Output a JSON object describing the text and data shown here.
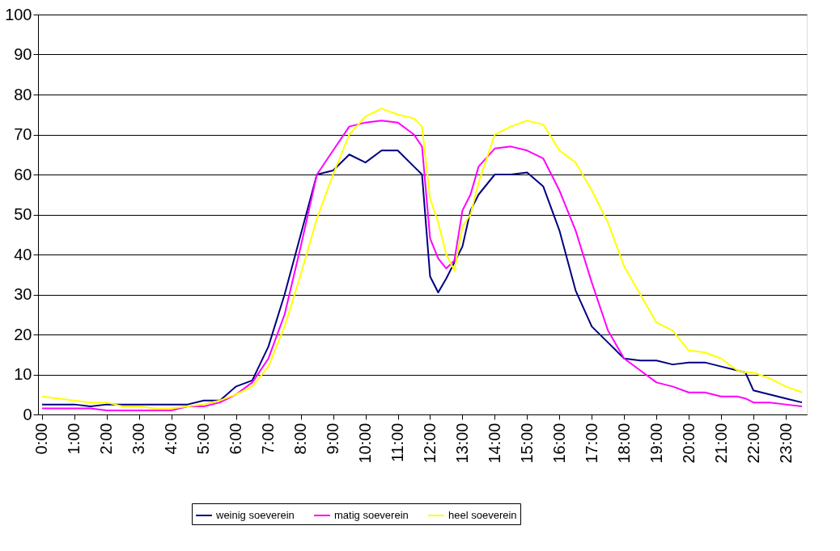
{
  "chart_data": {
    "type": "line",
    "x": [
      0,
      0.5,
      1,
      1.5,
      2,
      2.5,
      3,
      3.5,
      4,
      4.5,
      5,
      5.5,
      6,
      6.5,
      7,
      7.5,
      8,
      8.5,
      9,
      9.5,
      10,
      10.5,
      11,
      11.5,
      11.75,
      12,
      12.25,
      12.5,
      12.75,
      13,
      13.25,
      13.5,
      14,
      14.5,
      15,
      15.5,
      16,
      16.5,
      17,
      17.5,
      18,
      18.5,
      19,
      19.5,
      20,
      20.5,
      21,
      21.5,
      21.75,
      22,
      22.5,
      23,
      23.5
    ],
    "series": [
      {
        "name": "weinig soeverein",
        "color": "#000080",
        "values": [
          2.5,
          2.5,
          2.5,
          2,
          2.5,
          2.5,
          2.5,
          2.5,
          2.5,
          2.5,
          3.5,
          3.5,
          7,
          8.5,
          17,
          30,
          45,
          60,
          61,
          65,
          63,
          66,
          66,
          62,
          60,
          34.5,
          30.5,
          34,
          38,
          42,
          51,
          55,
          60,
          60,
          60.5,
          57,
          46,
          31,
          22,
          18,
          14,
          13.5,
          13.5,
          12.5,
          13,
          13,
          12,
          11,
          10.5,
          6,
          5,
          4,
          3
        ]
      },
      {
        "name": "matig soeverein",
        "color": "#ff00ff",
        "values": [
          1.5,
          1.5,
          1.5,
          1.5,
          1,
          1,
          1,
          1,
          1,
          2,
          2,
          3,
          5,
          8,
          14,
          25,
          42,
          60,
          66,
          72,
          73,
          73.5,
          73,
          70,
          67,
          44,
          39,
          36.5,
          38.5,
          51,
          55,
          62,
          66.5,
          67,
          66,
          64,
          56,
          46,
          33,
          21,
          14,
          11,
          8,
          7,
          5.5,
          5.5,
          4.5,
          4.5,
          4,
          3,
          3,
          2.5,
          2
        ]
      },
      {
        "name": "heel soeverein",
        "color": "#ffff00",
        "values": [
          4.5,
          4,
          3.5,
          3,
          3,
          2,
          2,
          1.5,
          1.5,
          2,
          2.5,
          3.5,
          5,
          7,
          12,
          22,
          35,
          49,
          60,
          70,
          74.5,
          76.5,
          75,
          74,
          72,
          54,
          48,
          40,
          36,
          47,
          50,
          58,
          70,
          72,
          73.5,
          72.5,
          66,
          63,
          56,
          48,
          37,
          30,
          23,
          21,
          16,
          15.5,
          14,
          11,
          10.5,
          10.5,
          9,
          7,
          5.5
        ]
      }
    ],
    "xlim": [
      -0.125,
      23.65
    ],
    "xticks": [
      {
        "value": 0,
        "label": "0:00"
      },
      {
        "value": 1,
        "label": "1:00"
      },
      {
        "value": 2,
        "label": "2:00"
      },
      {
        "value": 3,
        "label": "3:00"
      },
      {
        "value": 4,
        "label": "4:00"
      },
      {
        "value": 5,
        "label": "5:00"
      },
      {
        "value": 6,
        "label": "6:00"
      },
      {
        "value": 7,
        "label": "7:00"
      },
      {
        "value": 8,
        "label": "8:00"
      },
      {
        "value": 9,
        "label": "9:00"
      },
      {
        "value": 10,
        "label": "10:00"
      },
      {
        "value": 11,
        "label": "11:00"
      },
      {
        "value": 12,
        "label": "12:00"
      },
      {
        "value": 13,
        "label": "13:00"
      },
      {
        "value": 14,
        "label": "14:00"
      },
      {
        "value": 15,
        "label": "15:00"
      },
      {
        "value": 16,
        "label": "16:00"
      },
      {
        "value": 17,
        "label": "17:00"
      },
      {
        "value": 18,
        "label": "18:00"
      },
      {
        "value": 19,
        "label": "19:00"
      },
      {
        "value": 20,
        "label": "20:00"
      },
      {
        "value": 21,
        "label": "21:00"
      },
      {
        "value": 22,
        "label": "22:00"
      },
      {
        "value": 23,
        "label": "23:00"
      }
    ],
    "ylim": [
      0,
      100
    ],
    "yticks": [
      0,
      10,
      20,
      30,
      40,
      50,
      60,
      70,
      80,
      90,
      100
    ],
    "grid": "y",
    "legend": "bottom",
    "marker": "none",
    "line_style": "solid"
  }
}
